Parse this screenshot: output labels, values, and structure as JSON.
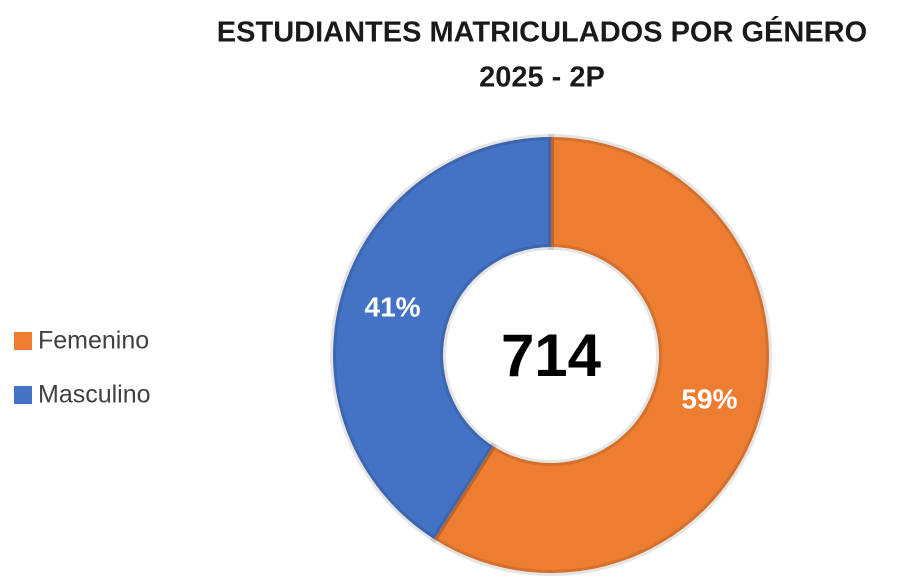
{
  "chart_data": {
    "type": "pie",
    "donut": true,
    "title": "ESTUDIANTES MATRICULADOS POR GÉNERO",
    "subtitle": "2025 - 2P",
    "center_label": "714",
    "categories": [
      "Femenino",
      "Masculino"
    ],
    "values": [
      59,
      41
    ],
    "value_labels": [
      "59%",
      "41%"
    ],
    "colors": [
      "#ed7d31",
      "#4472c4"
    ],
    "legend": "left"
  }
}
